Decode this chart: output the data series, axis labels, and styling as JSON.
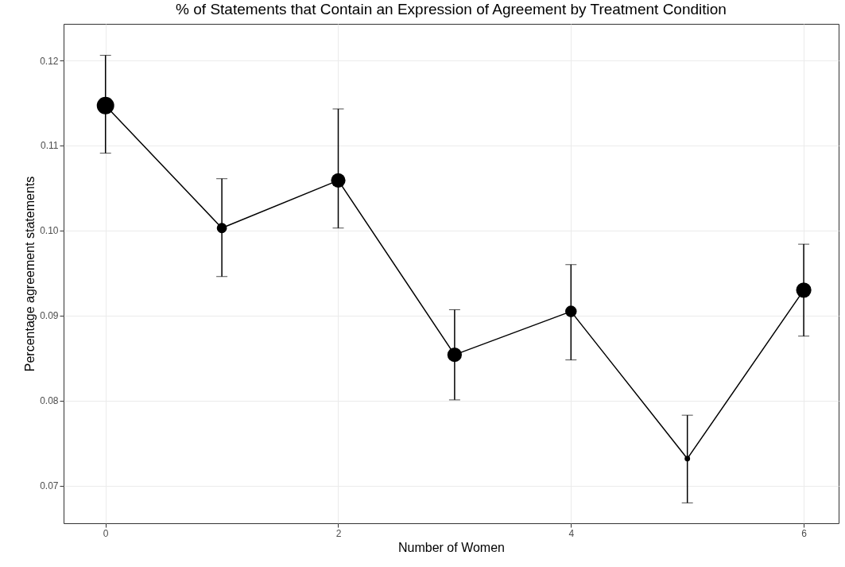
{
  "chart_data": {
    "type": "bubble",
    "title": "% of Statements that Contain an Expression of Agreement by Treatment Condition",
    "xlabel": "Number of Women",
    "ylabel": "Percentage agreement statements",
    "x": [
      0,
      1,
      2,
      3,
      4,
      5,
      6
    ],
    "series": [
      {
        "type": "line",
        "color": "#000000",
        "values": [
          0.1147,
          0.1003,
          0.1059,
          0.0854,
          0.0905,
          0.0732,
          0.093
        ]
      },
      {
        "color": "#000000",
        "values": [
          0.1147,
          0.1003,
          0.1059,
          0.0854,
          0.0905,
          0.0732,
          0.093
        ],
        "sizes": [
          1,
          0.34,
          0.69,
          0.69,
          0.44,
          0.1,
          0.77
        ],
        "errors": [
          [
            0.1091,
            0.1206
          ],
          [
            0.0946,
            0.1061
          ],
          [
            0.1003,
            0.1143
          ],
          [
            0.0801,
            0.0907
          ],
          [
            0.0848,
            0.096
          ],
          [
            0.068,
            0.0783
          ],
          [
            0.0876,
            0.0984
          ]
        ]
      }
    ],
    "xlim": [
      -0.36,
      6.3
    ],
    "xticks": [
      0,
      2,
      4,
      6
    ],
    "ylim": [
      0.0656,
      0.1243
    ],
    "yticks": [
      0.07,
      0.08,
      0.09,
      {
        "value": 0.1,
        "label": "0.10"
      },
      0.11,
      0.12
    ],
    "grid": true
  }
}
